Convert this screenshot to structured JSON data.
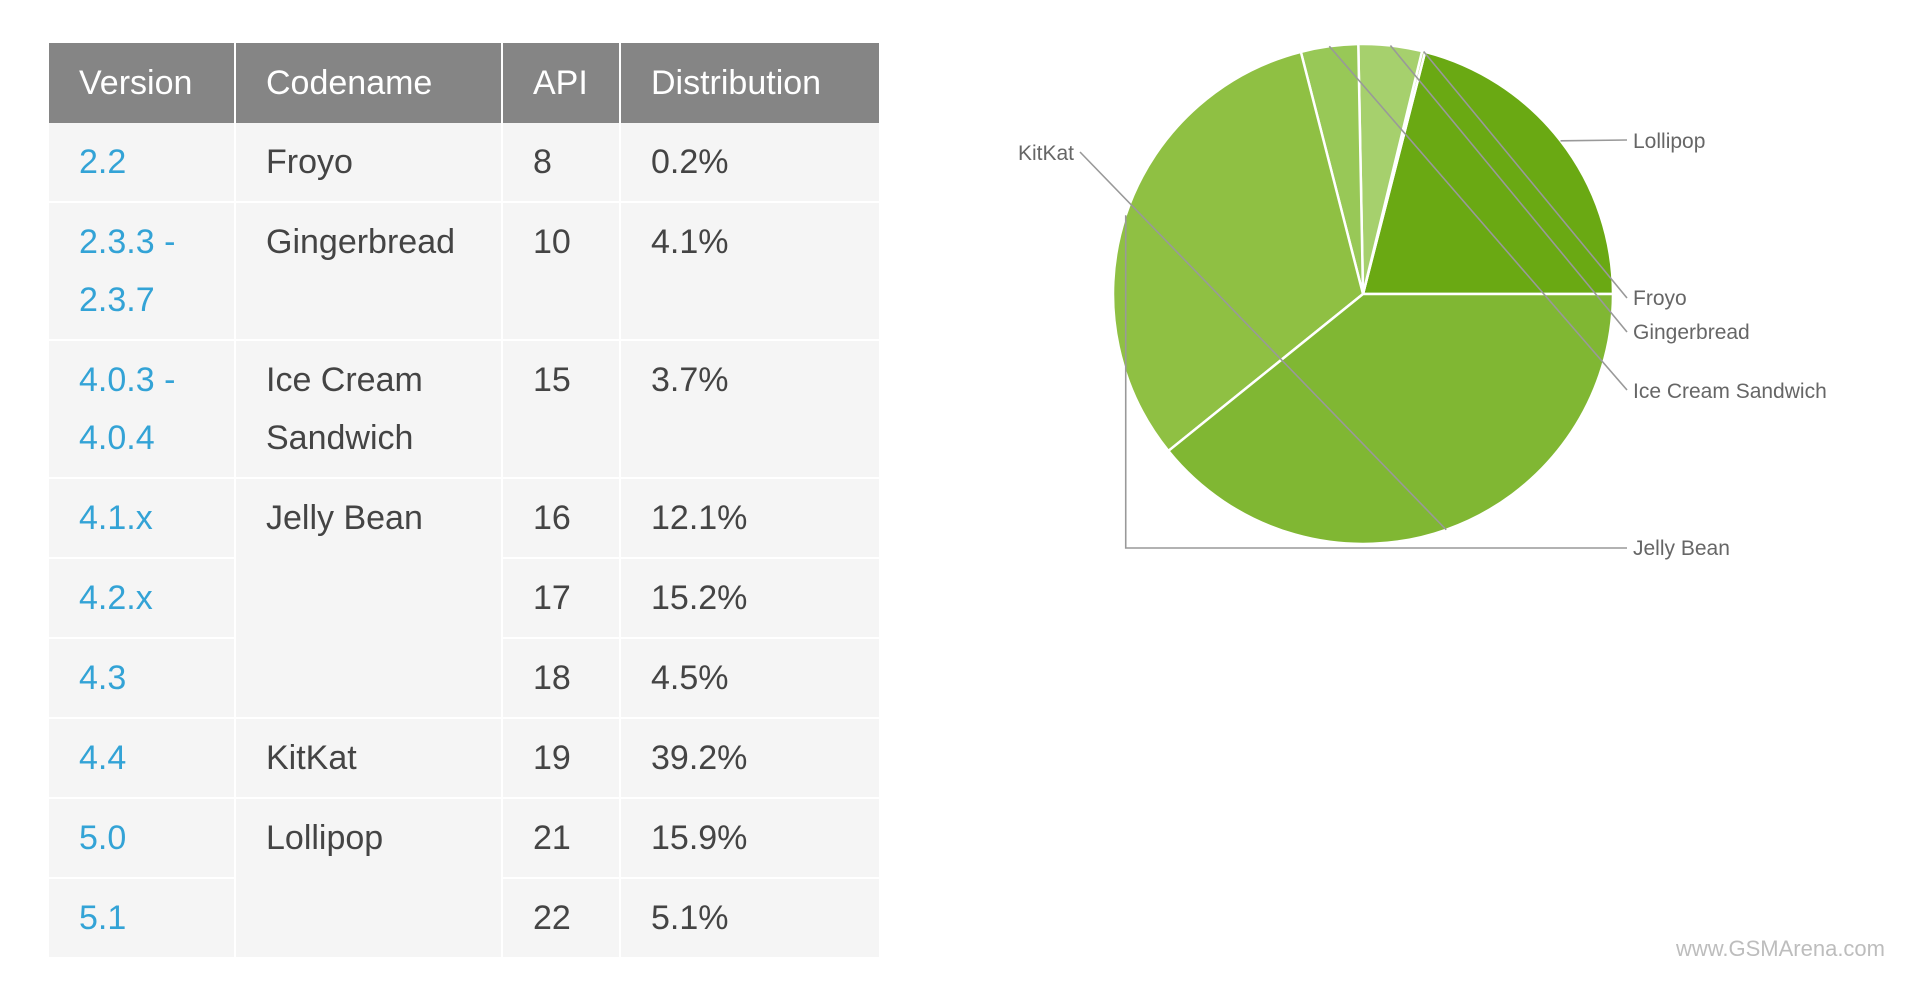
{
  "table": {
    "headers": [
      "Version",
      "Codename",
      "API",
      "Distribution"
    ],
    "rows": [
      {
        "version": "2.2",
        "codename": "Froyo",
        "api": "8",
        "distribution": "0.2%"
      },
      {
        "version": "2.3.3 - 2.3.7",
        "codename": "Gingerbread",
        "api": "10",
        "distribution": "4.1%"
      },
      {
        "version": "4.0.3 - 4.0.4",
        "codename": "Ice Cream Sandwich",
        "api": "15",
        "distribution": "3.7%"
      },
      {
        "version": "4.1.x",
        "codename": "Jelly Bean",
        "api": "16",
        "distribution": "12.1%"
      },
      {
        "version": "4.2.x",
        "codename": "",
        "api": "17",
        "distribution": "15.2%"
      },
      {
        "version": "4.3",
        "codename": "",
        "api": "18",
        "distribution": "4.5%"
      },
      {
        "version": "4.4",
        "codename": "KitKat",
        "api": "19",
        "distribution": "39.2%"
      },
      {
        "version": "5.0",
        "codename": "Lollipop",
        "api": "21",
        "distribution": "15.9%"
      },
      {
        "version": "5.1",
        "codename": "",
        "api": "22",
        "distribution": "5.1%"
      }
    ]
  },
  "chart_data": {
    "type": "pie",
    "categories": [
      "Lollipop",
      "Froyo",
      "Gingerbread",
      "Ice Cream Sandwich",
      "Jelly Bean",
      "KitKat"
    ],
    "values": [
      21.0,
      0.2,
      4.1,
      3.7,
      31.8,
      39.2
    ],
    "colors": [
      "#6aa913",
      "#9fcb62",
      "#a6d06d",
      "#98c857",
      "#8fc043",
      "#80b733"
    ],
    "start_direction": "3 o'clock, counter-clockwise"
  },
  "watermark": "www.GSMArena.com"
}
